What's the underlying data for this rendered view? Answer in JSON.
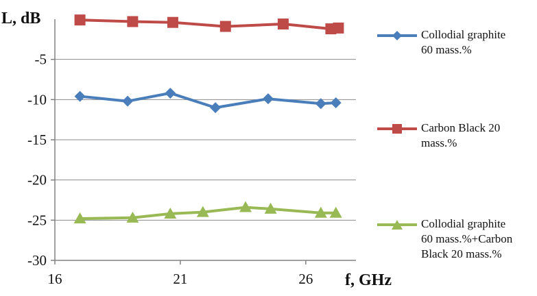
{
  "chart_data": {
    "type": "line",
    "ylabel": "L, dB",
    "xlabel": "f, GHz",
    "xlim": [
      16,
      28
    ],
    "ylim": [
      -30,
      0
    ],
    "xticks": [
      "16",
      "21",
      "26"
    ],
    "yticks": [
      "-5",
      "-10",
      "-15",
      "-20",
      "-25",
      "-30"
    ],
    "grid": "horizontal",
    "legend_position": "right",
    "series": [
      {
        "name": "Collodial graphite 60 mass.%",
        "color": "#4a7ebb",
        "marker": "diamond",
        "x": [
          17.0,
          18.9,
          20.6,
          22.4,
          24.5,
          26.6,
          27.2
        ],
        "y": [
          -9.6,
          -10.2,
          -9.2,
          -11.0,
          -9.9,
          -10.5,
          -10.4
        ]
      },
      {
        "name": "Carbon Black 20 mass.%",
        "color": "#be4b48",
        "marker": "square",
        "x": [
          17.0,
          19.1,
          20.7,
          22.8,
          25.1,
          27.0,
          27.3
        ],
        "y": [
          -0.1,
          -0.3,
          -0.4,
          -0.9,
          -0.6,
          -1.2,
          -1.1
        ]
      },
      {
        "name": "Collodial graphite 60 mass.%+Carbon Black 20 mass.%",
        "color": "#98b954",
        "marker": "triangle",
        "x": [
          17.0,
          19.1,
          20.6,
          21.9,
          23.6,
          24.6,
          26.6,
          27.2
        ],
        "y": [
          -24.8,
          -24.7,
          -24.2,
          -24.0,
          -23.4,
          -23.6,
          -24.1,
          -24.1
        ]
      }
    ]
  },
  "legend": {
    "items": [
      {
        "lines": [
          "Collodial graphite",
          "60 mass.%"
        ]
      },
      {
        "lines": [
          "Carbon Black 20",
          "mass.%"
        ]
      },
      {
        "lines": [
          "Collodial graphite",
          "60 mass.%+Carbon",
          "Black 20 mass.%"
        ]
      }
    ]
  }
}
